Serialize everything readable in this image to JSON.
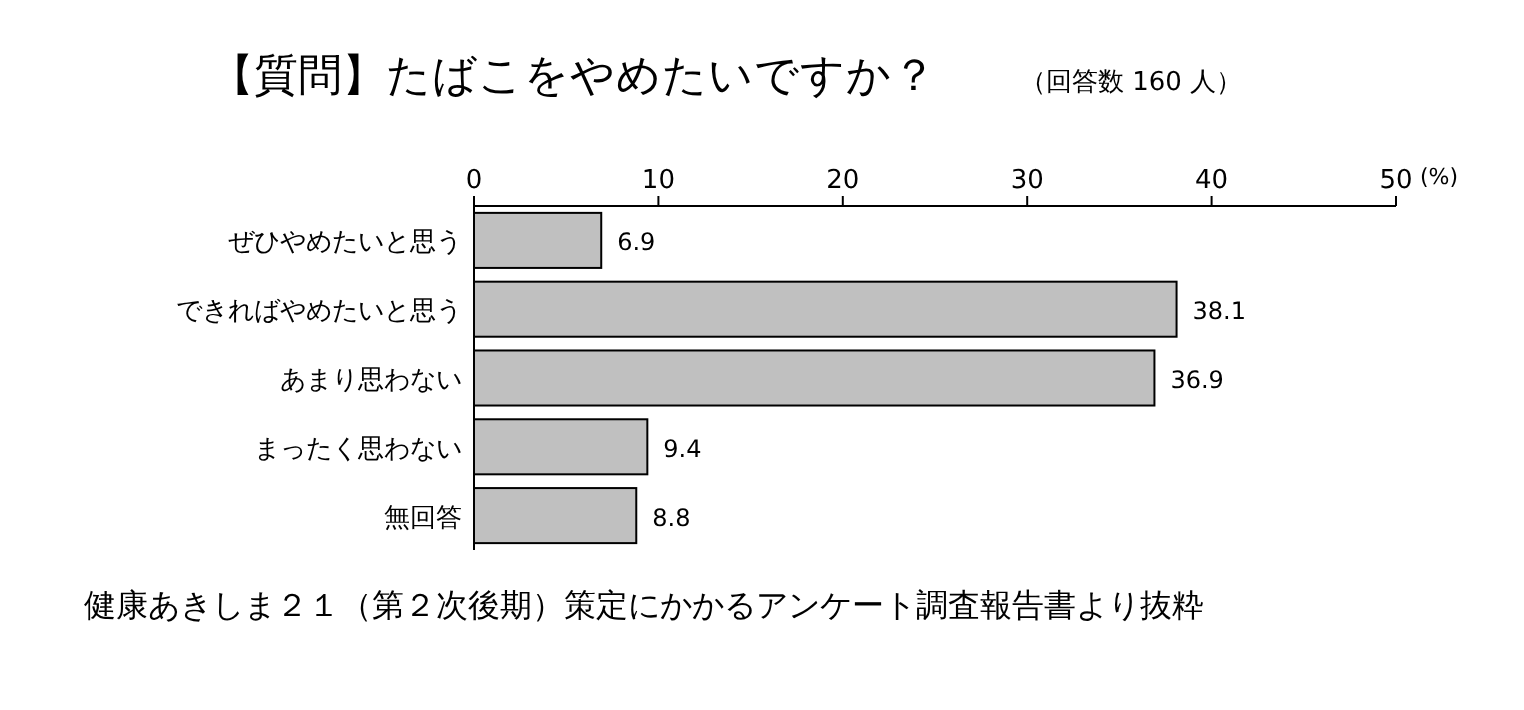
{
  "chart_data": {
    "type": "bar",
    "orientation": "horizontal",
    "title": "【質問】たばこをやめたいですか？",
    "subtitle": "（回答数 160 人）",
    "xlabel": "(%)",
    "categories": [
      "ぜひやめたいと思う",
      "できればやめたいと思う",
      "あまり思わない",
      "まったく思わない",
      "無回答"
    ],
    "values": [
      6.9,
      38.1,
      36.9,
      9.4,
      8.8
    ],
    "color": "#c0c0c0",
    "data_labels": true,
    "xlim": [
      0,
      50
    ],
    "xticks": [
      0,
      10,
      20,
      30,
      40,
      50
    ],
    "annotations": [
      "健康あきしま２１（第２次後期）策定にかかるアンケート調査報告書より抜粋"
    ]
  }
}
